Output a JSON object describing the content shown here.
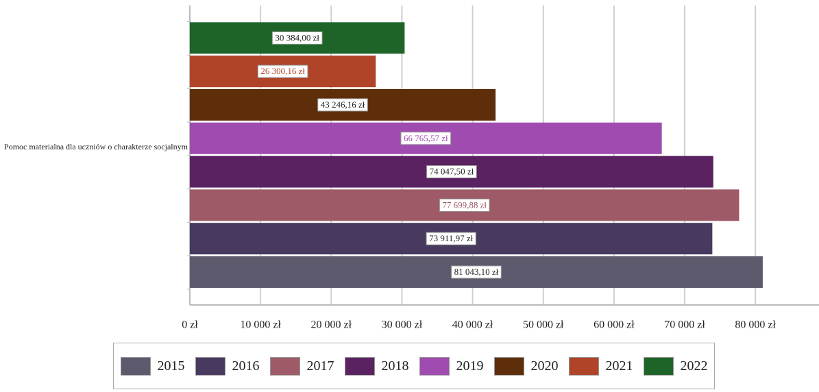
{
  "chart_data": {
    "type": "bar",
    "orientation": "horizontal",
    "categories": [
      "Pomoc materialna dla uczniów o charakterze socjalnym"
    ],
    "series": [
      {
        "name": "2015",
        "color": "#5d5a6e",
        "values": [
          81043.1
        ],
        "value_labels": [
          "81 043,10 zł"
        ]
      },
      {
        "name": "2016",
        "color": "#483a5e",
        "values": [
          73911.97
        ],
        "value_labels": [
          "73 911,97 zł"
        ]
      },
      {
        "name": "2017",
        "color": "#9e5a66",
        "values": [
          77699.88
        ],
        "value_labels": [
          "77 699,88 zł"
        ]
      },
      {
        "name": "2018",
        "color": "#5a2260",
        "values": [
          74047.5
        ],
        "value_labels": [
          "74 047,50 zł"
        ]
      },
      {
        "name": "2019",
        "color": "#a04bb0",
        "values": [
          66765.57
        ],
        "value_labels": [
          "66 765,57 zł"
        ]
      },
      {
        "name": "2020",
        "color": "#5e2e0a",
        "values": [
          43246.16
        ],
        "value_labels": [
          "43 246,16 zł"
        ]
      },
      {
        "name": "2021",
        "color": "#b04428",
        "values": [
          26300.16
        ],
        "value_labels": [
          "26 300,16 zł"
        ]
      },
      {
        "name": "2022",
        "color": "#1e6428",
        "values": [
          30384.0
        ],
        "value_labels": [
          "30 384,00 zł"
        ]
      }
    ],
    "xlim": [
      0,
      89000
    ],
    "xticks": [
      {
        "value": 0,
        "label": "0 zł"
      },
      {
        "value": 10000,
        "label": "10 000 zł"
      },
      {
        "value": 20000,
        "label": "20 000 zł"
      },
      {
        "value": 30000,
        "label": "30 000 zł"
      },
      {
        "value": 40000,
        "label": "40 000 zł"
      },
      {
        "value": 50000,
        "label": "50 000 zł"
      },
      {
        "value": 60000,
        "label": "60 000 zł"
      },
      {
        "value": 70000,
        "label": "70 000 zł"
      },
      {
        "value": 80000,
        "label": "80 000 zł"
      }
    ],
    "grid": true,
    "legend": "bottom"
  }
}
